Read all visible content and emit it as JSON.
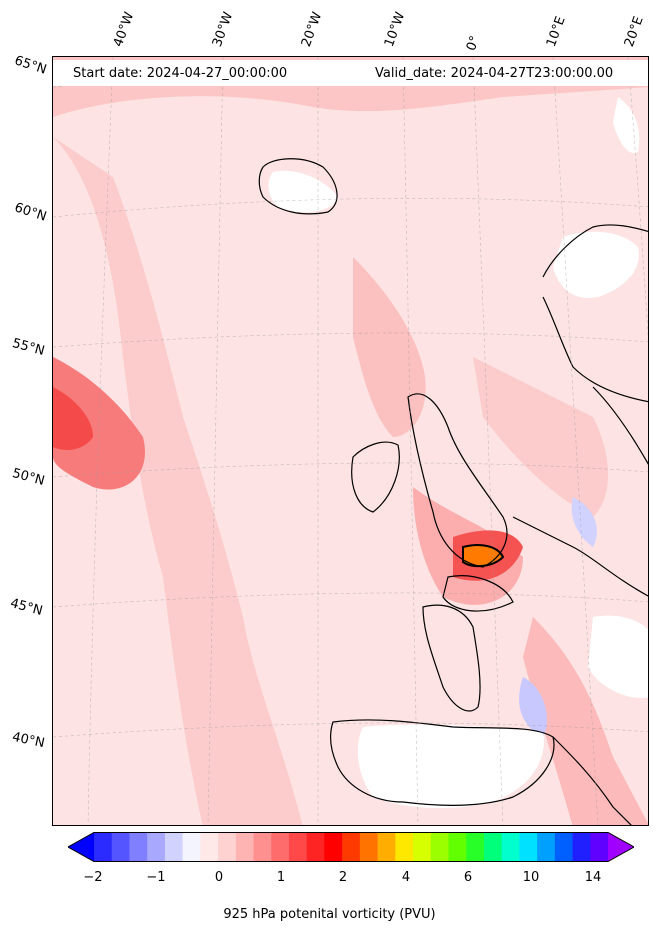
{
  "header": {
    "start_date": "Start date: 2024-04-27_00:00:00",
    "valid_date": "Valid_date: 2024-04-27T23:00:00.00"
  },
  "longitude_labels": [
    "40°W",
    "30°W",
    "20°W",
    "10°W",
    "0°",
    "10°E",
    "20°E"
  ],
  "latitude_labels": [
    "65°N",
    "60°N",
    "55°N",
    "50°N",
    "45°N",
    "40°N"
  ],
  "colorbar": {
    "tick_labels": [
      "−2",
      "−1",
      "0",
      "1",
      "2",
      "4",
      "6",
      "10",
      "14"
    ],
    "label": "925 hPa potenital vorticity (PVU)",
    "colors": [
      "#0000ff",
      "#2b2bff",
      "#5555ff",
      "#7f7fff",
      "#a8a8ff",
      "#d2d2ff",
      "#f4f4ff",
      "#ffe8e8",
      "#ffd2d2",
      "#ffb4b4",
      "#ff9090",
      "#ff6c6c",
      "#ff4848",
      "#ff2424",
      "#ff0000",
      "#ff3a00",
      "#ff7400",
      "#ffae00",
      "#ffe800",
      "#d6ff00",
      "#9cff00",
      "#62ff00",
      "#28ff28",
      "#00ff7a",
      "#00ffcc",
      "#00e0ff",
      "#00a0ff",
      "#0060ff",
      "#2020ff",
      "#6000ff",
      "#a000ff"
    ]
  }
}
